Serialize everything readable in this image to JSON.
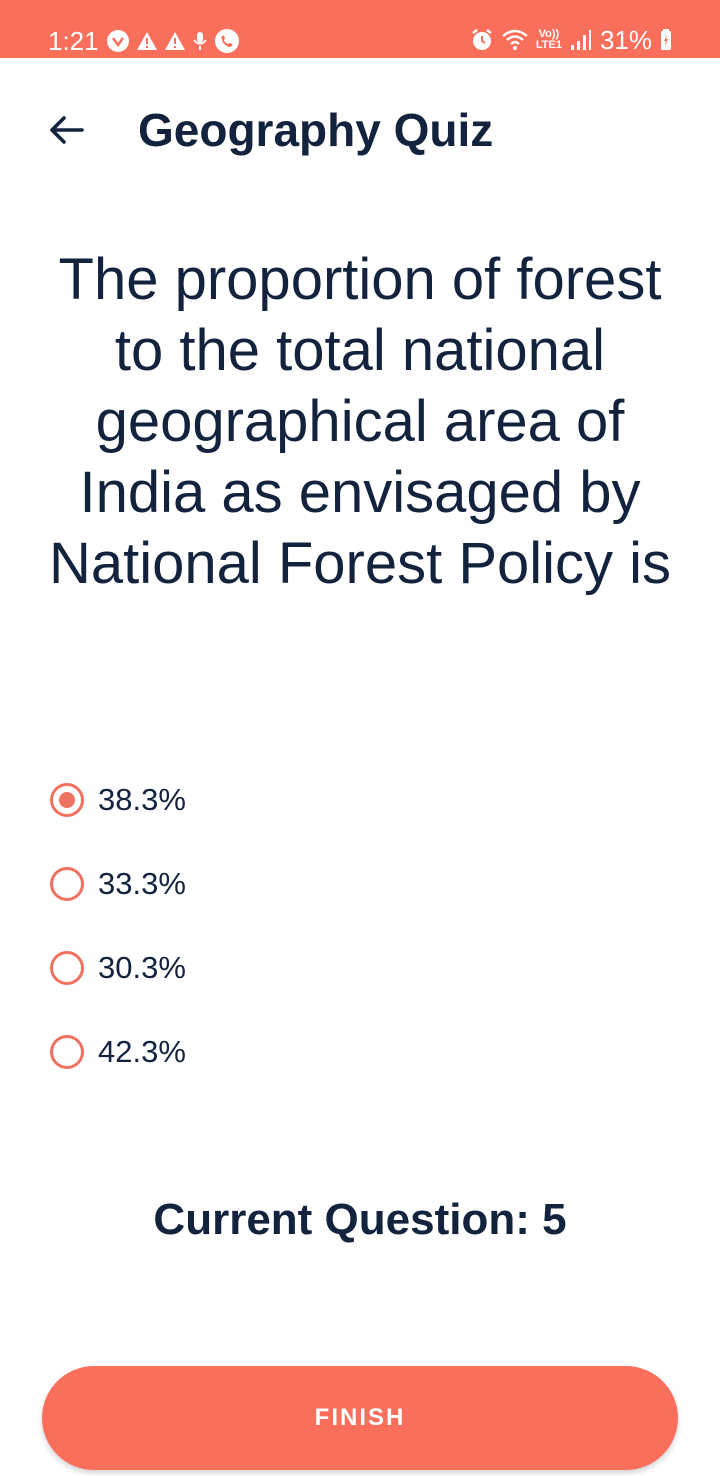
{
  "status_bar": {
    "time": "1:21",
    "battery": "31%",
    "network_top": "Vo))",
    "network_bottom": "LTE1",
    "left_icons": [
      "vpn-icon",
      "alert-icon",
      "alert-icon",
      "mic-icon",
      "call-icon"
    ],
    "right_icons": [
      "alarm-icon",
      "wifi-icon",
      "signal-icon",
      "battery-icon"
    ]
  },
  "header": {
    "title": "Geography Quiz",
    "back_icon": "arrow-left-icon"
  },
  "question": {
    "text": "The proportion of forest to the total national geographical area of India as envisaged by National Forest Policy is"
  },
  "options": [
    {
      "label": "38.3%",
      "selected": true
    },
    {
      "label": "33.3%",
      "selected": false
    },
    {
      "label": "30.3%",
      "selected": false
    },
    {
      "label": "42.3%",
      "selected": false
    }
  ],
  "progress": {
    "current_question_text": "Current Question: 5"
  },
  "actions": {
    "finish_label": "FINISH"
  },
  "colors": {
    "accent": "#fa6f5b",
    "radio": "#ef7261",
    "text": "#13233e"
  }
}
